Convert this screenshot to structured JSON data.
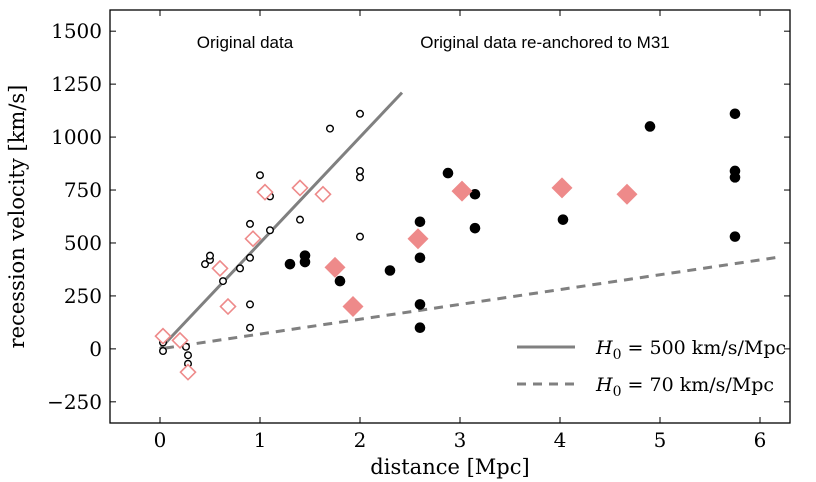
{
  "chart_data": {
    "type": "scatter",
    "xlabel": "distance [Mpc]",
    "ylabel": "recession velocity [km/s]",
    "xlim": [
      -0.5,
      6.3
    ],
    "ylim": [
      -350,
      1600
    ],
    "xticks": [
      0,
      1,
      2,
      3,
      4,
      5,
      6
    ],
    "yticks": [
      -250,
      0,
      250,
      500,
      750,
      1000,
      1250,
      1500
    ],
    "xtick_labels": [
      "0",
      "1",
      "2",
      "3",
      "4",
      "5",
      "6"
    ],
    "ytick_labels": [
      "−250",
      "0",
      "250",
      "500",
      "750",
      "1000",
      "1250",
      "1500"
    ],
    "grid": false,
    "legend_position": "lower-right",
    "annotations": [
      {
        "text": "Original data",
        "x": 0.85,
        "y": 1420
      },
      {
        "text": "Original data re-anchored to M31",
        "x": 3.85,
        "y": 1420
      }
    ],
    "series": [
      {
        "marker": "open-circle",
        "color": "#000000",
        "points": [
          [
            0.03,
            30
          ],
          [
            0.03,
            -10
          ],
          [
            0.22,
            40
          ],
          [
            0.26,
            10
          ],
          [
            0.28,
            -30
          ],
          [
            0.28,
            -70
          ],
          [
            0.45,
            400
          ],
          [
            0.5,
            420
          ],
          [
            0.5,
            440
          ],
          [
            0.63,
            320
          ],
          [
            0.8,
            380
          ],
          [
            0.9,
            430
          ],
          [
            0.9,
            590
          ],
          [
            0.9,
            210
          ],
          [
            0.9,
            100
          ],
          [
            1.0,
            820
          ],
          [
            1.1,
            720
          ],
          [
            1.1,
            560
          ],
          [
            1.4,
            610
          ],
          [
            1.7,
            1040
          ],
          [
            2.0,
            1110
          ],
          [
            2.0,
            840
          ],
          [
            2.0,
            810
          ],
          [
            2.0,
            530
          ]
        ]
      },
      {
        "marker": "filled-circle",
        "color": "#000000",
        "points": [
          [
            1.3,
            400
          ],
          [
            1.45,
            440
          ],
          [
            1.45,
            410
          ],
          [
            1.8,
            320
          ],
          [
            2.3,
            370
          ],
          [
            2.6,
            600
          ],
          [
            2.6,
            430
          ],
          [
            2.6,
            210
          ],
          [
            2.6,
            100
          ],
          [
            2.88,
            830
          ],
          [
            3.15,
            730
          ],
          [
            3.15,
            570
          ],
          [
            4.03,
            610
          ],
          [
            4.9,
            1050
          ],
          [
            5.75,
            1110
          ],
          [
            5.75,
            840
          ],
          [
            5.75,
            810
          ],
          [
            5.75,
            530
          ]
        ]
      },
      {
        "marker": "open-diamond",
        "color": "#ee8a8a",
        "points": [
          [
            0.03,
            60
          ],
          [
            0.2,
            40
          ],
          [
            0.28,
            -110
          ],
          [
            0.6,
            380
          ],
          [
            0.68,
            200
          ],
          [
            0.93,
            520
          ],
          [
            1.05,
            740
          ],
          [
            1.4,
            760
          ],
          [
            1.63,
            730
          ]
        ]
      },
      {
        "marker": "filled-diamond",
        "color": "#ee8a8a",
        "points": [
          [
            1.75,
            385
          ],
          [
            1.93,
            200
          ],
          [
            2.58,
            520
          ],
          [
            3.02,
            745
          ],
          [
            4.02,
            760
          ],
          [
            4.67,
            730
          ]
        ]
      }
    ],
    "lines": [
      {
        "name": "H0 = 500 km/s/Mpc",
        "style": "solid",
        "color": "#808080",
        "slope": 500,
        "x_range": [
          0.0,
          2.42
        ]
      },
      {
        "name": "H0 = 70 km/s/Mpc",
        "style": "dashed",
        "color": "#808080",
        "slope": 70,
        "x_range": [
          0.05,
          6.2
        ]
      }
    ],
    "legend": [
      {
        "symbol": "H",
        "subscript": "0",
        "rest": " = 500 km/s/Mpc",
        "style": "solid"
      },
      {
        "symbol": "H",
        "subscript": "0",
        "rest": " = 70 km/s/Mpc",
        "style": "dashed"
      }
    ]
  }
}
